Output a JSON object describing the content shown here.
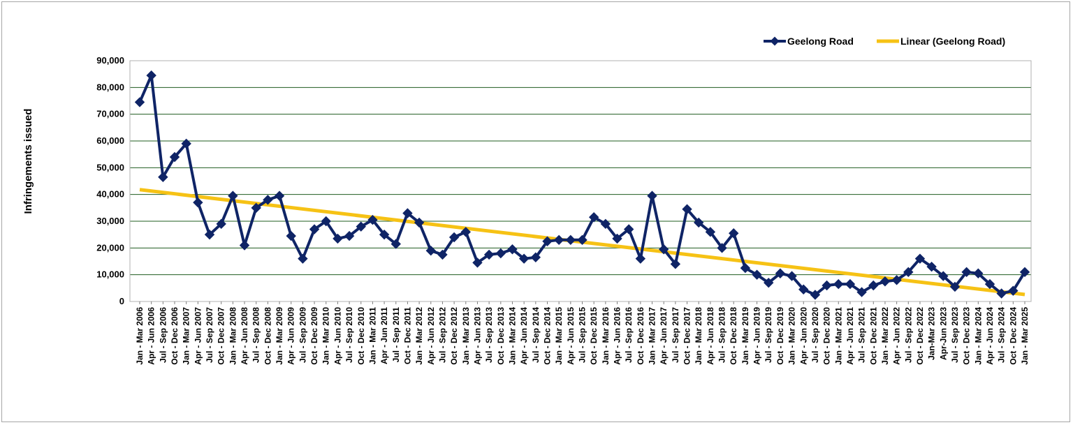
{
  "chart_data": {
    "type": "line",
    "title": "",
    "xlabel": "",
    "ylabel": "Infringements issued",
    "ylim": [
      0,
      90000
    ],
    "yticks": [
      0,
      10000,
      20000,
      30000,
      40000,
      50000,
      60000,
      70000,
      80000,
      90000
    ],
    "ytick_labels": [
      "0",
      "10,000",
      "20,000",
      "30,000",
      "40,000",
      "50,000",
      "60,000",
      "70,000",
      "80,000",
      "90,000"
    ],
    "grid": true,
    "legend_position": "top-right",
    "categories": [
      "Jan - Mar 2006",
      "Apr - Jun 2006",
      "Jul - Sep 2006",
      "Oct - Dec 2006",
      "Jan - Mar 2007",
      "Apr - Jun 2007",
      "Jul - Sep 2007",
      "Oct - Dec 2007",
      "Jan - Mar 2008",
      "Apr - Jun 2008",
      "Jul - Sep 2008",
      "Oct - Dec 2008",
      "Jan - Mar 2009",
      "Apr - Jun 2009",
      "Jul - Sep 2009",
      "Oct - Dec 2009",
      "Jan - Mar 2010",
      "Apr - Jun 2010",
      "Jul - Sep 2010",
      "Oct - Dec 2010",
      "Jan - Mar 2011",
      "Apr - Jun 2011",
      "Jul - Sep 2011",
      "Oct - Dec 2011",
      "Jan - Mar 2012",
      "Apr - Jun 2012",
      "Jul - Sep 2012",
      "Oct - Dec 2012",
      "Jan - Mar 2013",
      "Apr - Jun 2013",
      "Jul - Sep 2013",
      "Oct - Dec 2013",
      "Jan - Mar 2014",
      "Apr - Jun 2014",
      "Jul - Sep 2014",
      "Oct - Dec 2014",
      "Jan - Mar 2015",
      "Apr - Jun 2015",
      "Jul - Sep 2015",
      "Oct - Dec 2015",
      "Jan - Mar 2016",
      "Apr - Jun 2016",
      "Jul - Sep 2016",
      "Oct - Dec 2016",
      "Jan - Mar 2017",
      "Apr - Jun 2017",
      "Jul - Sep 2017",
      "Oct - Dec 2017",
      "Jan - Mar 2018",
      "Apr - Jun 2018",
      "Jul - Sep 2018",
      "Oct - Dec 2018",
      "Jan - Mar 2019",
      "Apr - Jun 2019",
      "Jul - Sep 2019",
      "Oct - Dec 2019",
      "Jan - Mar 2020",
      "Apr - Jun 2020",
      "Jul - Sep 2020",
      "Oct - Dec 2020",
      "Jan - Mar 2021",
      "Apr - Jun 2021",
      "Jul - Sep 2021",
      "Oct - Dec 2021",
      "Jan - Mar 2022",
      "Apr - Jun 2022",
      "Jul - Sep 2022",
      "Oct - Dec 2022",
      "Jan-Mar 2023",
      "Apr-Jun 2023",
      "Jul - Sep 2023",
      "Oct - Dec 2023",
      "Jan - Mar 2024",
      "Apr - Jun 2024",
      "Jul - Sep 2024",
      "Oct - Dec 2024",
      "Jan - Mar 2025"
    ],
    "series": [
      {
        "name": "Geelong Road",
        "color": "#0f2466",
        "marker": "diamond",
        "values": [
          74500,
          84500,
          46500,
          54000,
          59000,
          37000,
          25000,
          29000,
          39500,
          21000,
          35000,
          38000,
          39500,
          24500,
          16000,
          27000,
          30000,
          23500,
          24500,
          28000,
          30500,
          25000,
          21500,
          33000,
          29500,
          19000,
          17500,
          24000,
          26000,
          14500,
          17500,
          18000,
          19500,
          16000,
          16500,
          22500,
          23000,
          23000,
          23000,
          31500,
          29000,
          23500,
          27000,
          16000,
          39500,
          19500,
          14000,
          34500,
          29500,
          26000,
          20000,
          25500,
          12500,
          10000,
          7000,
          10500,
          9500,
          4500,
          2500,
          6000,
          6500,
          6500,
          3500,
          6000,
          7500,
          8000,
          11000,
          16000,
          13000,
          9500,
          5500,
          11000,
          10500,
          6500,
          3000,
          4000,
          11000
        ]
      }
    ],
    "trendline": {
      "name": "Linear (Geelong Road)",
      "color": "#f6c215",
      "type": "linear",
      "start_value": 41800,
      "end_value": 2600
    }
  }
}
